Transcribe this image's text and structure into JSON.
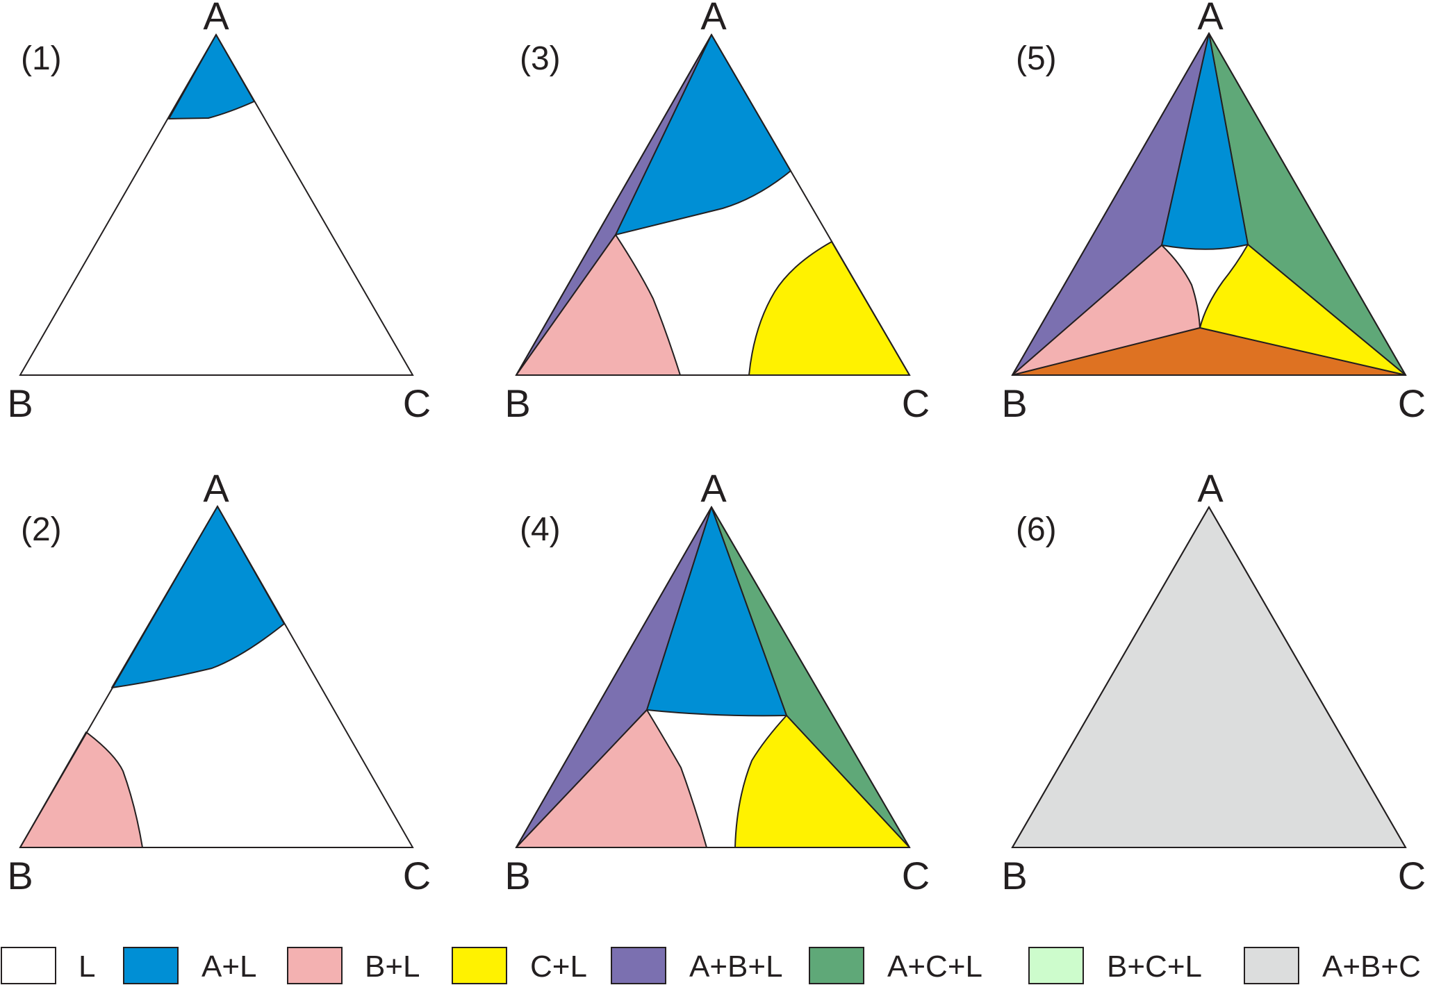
{
  "colors": {
    "L": "#ffffff",
    "A+L": "#008fd5",
    "B+L": "#f3b1b1",
    "C+L": "#fff200",
    "A+B+L": "#7b70b0",
    "A+C+L": "#5fa878",
    "B+C+L": "#cdfccc",
    "A+B+C": "#dcdddd",
    "ABC_region5": "#de7222"
  },
  "vertex_labels": {
    "A": "A",
    "B": "B",
    "C": "C"
  },
  "panels": [
    {
      "id": "p1",
      "label": "(1)",
      "regions": [
        "A+L"
      ]
    },
    {
      "id": "p2",
      "label": "(2)",
      "regions": [
        "A+L",
        "B+L"
      ]
    },
    {
      "id": "p3",
      "label": "(3)",
      "regions": [
        "A+L",
        "B+L",
        "C+L",
        "A+B+L"
      ]
    },
    {
      "id": "p4",
      "label": "(4)",
      "regions": [
        "A+L",
        "B+L",
        "C+L",
        "A+B+L",
        "A+C+L"
      ]
    },
    {
      "id": "p5",
      "label": "(5)",
      "regions": [
        "A+L",
        "B+L",
        "C+L",
        "A+B+L",
        "A+C+L"
      ]
    },
    {
      "id": "p6",
      "label": "(6)",
      "regions": [
        "A+B+C"
      ]
    }
  ],
  "legend": [
    {
      "key": "L",
      "label": "L"
    },
    {
      "key": "A+L",
      "label": "A+L"
    },
    {
      "key": "B+L",
      "label": "B+L"
    },
    {
      "key": "C+L",
      "label": "C+L"
    },
    {
      "key": "A+B+L",
      "label": "A+B+L"
    },
    {
      "key": "A+C+L",
      "label": "A+C+L"
    },
    {
      "key": "B+C+L",
      "label": "B+C+L"
    },
    {
      "key": "A+B+C",
      "label": "A+B+C"
    }
  ]
}
